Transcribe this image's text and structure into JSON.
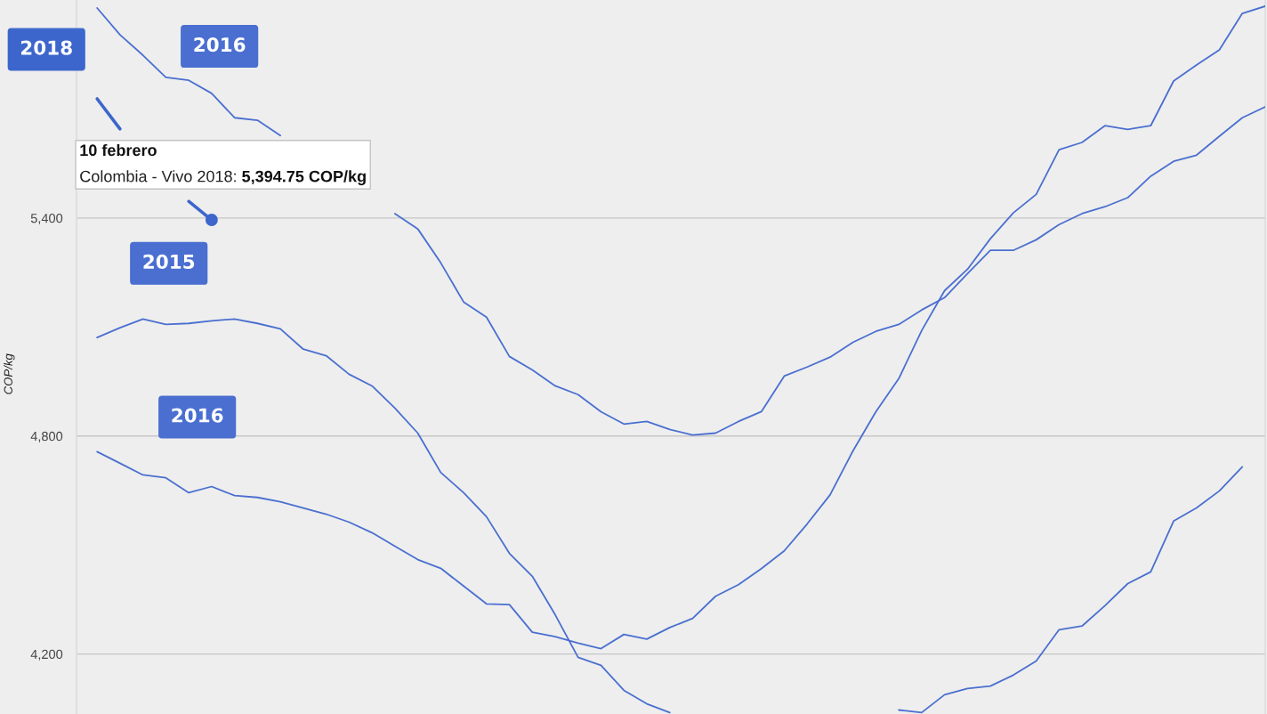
{
  "chart_data": {
    "type": "line",
    "ylabel": "COP/kg",
    "categories": [
      null,
      null,
      null,
      null,
      null,
      null,
      null,
      null,
      null,
      null,
      null,
      null,
      null,
      null,
      null,
      null,
      null,
      null,
      null,
      null,
      null,
      null,
      null,
      null,
      null,
      null,
      null,
      null,
      null,
      null,
      null,
      null,
      null,
      null,
      null,
      null,
      null,
      null,
      null,
      null,
      null,
      null,
      null,
      null,
      null,
      null,
      null,
      null,
      null,
      null,
      null,
      null
    ],
    "series": [
      {
        "name": "2016",
        "color": "#4a6fd0",
        "values": [
          5978,
          5904,
          5848,
          5787,
          5779,
          5743,
          5676,
          5669,
          5627,
          null,
          null,
          null,
          null,
          5412,
          5370,
          5277,
          5169,
          5127,
          5019,
          4982,
          4938,
          4914,
          4867,
          4833,
          4840,
          4818,
          4803,
          4808,
          4840,
          4867,
          4965,
          4990,
          5017,
          5058,
          5088,
          5107,
          5147,
          5181,
          5247,
          5311,
          5311,
          5340,
          5382,
          5412,
          5431,
          5456,
          5515,
          5556,
          5573,
          5625,
          5676,
          5706
        ]
      },
      {
        "name": "2018",
        "color": "#3d66cc",
        "values": [
          5728,
          5645,
          null,
          null,
          5446,
          5394.75,
          null,
          null,
          null,
          null,
          null,
          null,
          null,
          null,
          null,
          null,
          null,
          null,
          null,
          null,
          null,
          null,
          null,
          null,
          null,
          null,
          null,
          null,
          null,
          null,
          null,
          null,
          null,
          null,
          null,
          null,
          null,
          null,
          null,
          null,
          null,
          null,
          null,
          null,
          null,
          null,
          null,
          null,
          null,
          null,
          null,
          null
        ]
      },
      {
        "name": "2015",
        "color": "#4a6fd0",
        "values": [
          5071,
          5098,
          5122,
          5107,
          5110,
          5117,
          5122,
          5110,
          5095,
          5039,
          5021,
          4970,
          4938,
          4877,
          4808,
          4700,
          4644,
          4578,
          4477,
          4414,
          4308,
          4191,
          4169,
          4100,
          4063,
          4039,
          null,
          null,
          null,
          null,
          null,
          null,
          null,
          null,
          null,
          4046,
          4039,
          4088,
          4105,
          4112,
          4142,
          4181,
          4267,
          4277,
          4333,
          4394,
          4426,
          4566,
          4602,
          4649,
          4715,
          null
        ]
      },
      {
        "name": "2016",
        "color": "#4a6fd0",
        "values": [
          4757,
          4725,
          4693,
          4685,
          4644,
          4661,
          4636,
          4631,
          4619,
          4602,
          4585,
          4563,
          4534,
          4497,
          4460,
          4436,
          4387,
          4338,
          4336,
          4260,
          4248,
          4230,
          4215,
          4254,
          4241,
          4273,
          4298,
          4359,
          4391,
          4435,
          4484,
          4558,
          4638,
          4759,
          4867,
          4958,
          5090,
          5200,
          5259,
          5343,
          5414,
          5465,
          5588,
          5608,
          5654,
          5644,
          5654,
          5777,
          5821,
          5863,
          5963,
          5983
        ]
      }
    ],
    "ylim": [
      4035,
      6000
    ],
    "yticks": [
      {
        "value": 4200,
        "label": "4,200"
      },
      {
        "value": 4800,
        "label": "4,800"
      },
      {
        "value": 5400,
        "label": "5,400"
      }
    ],
    "grid": "y",
    "legend": false,
    "tick_labels": "y",
    "line_style": "solid",
    "annotations": [
      "10 febrero\nColombia - Vivo 2018: 5,394.75 COP/kg"
    ]
  }
}
